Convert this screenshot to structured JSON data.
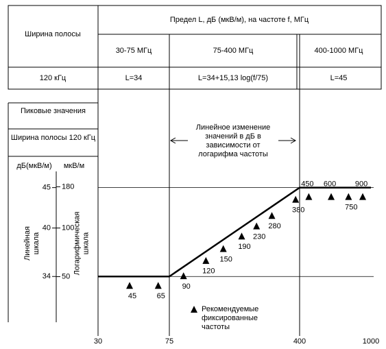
{
  "table": {
    "corner": "Ширина полосы",
    "header": "Предел L, дБ (мкВ/м), на частоте f, МГц",
    "columns": [
      "30-75 МГц",
      "75-400 МГц",
      "400-1000 МГц"
    ],
    "rows": [
      [
        "120 кГц",
        "L=34",
        "L=34+15,13 log(f/75)",
        "L=45"
      ]
    ]
  },
  "chart_data": {
    "type": "line",
    "detector": "Пиковые значения",
    "bandwidth": "Ширина полосы 120 кГц",
    "ylabel": "дБ(мкВ/м)",
    "y2label": "мкВ/м",
    "ylabel_note": "Линейная шкала",
    "y2label_note": "Логарифмическая шкала",
    "annotation": "Линейное изменение значений в дБ в зависимости от логарифма частоты",
    "xlog": true,
    "xlim": [
      30,
      1000
    ],
    "xticks": [
      30,
      75,
      400,
      1000
    ],
    "ylim": [
      27,
      55
    ],
    "yticks": [
      34,
      40,
      45
    ],
    "y2log": true,
    "y2lim": [
      22.4,
      562
    ],
    "y2ticks": [
      50,
      100,
      180
    ],
    "series": [
      {
        "x": [
          30,
          75,
          400,
          1000
        ],
        "values": [
          34,
          34,
          45,
          45
        ],
        "color": "#000000"
      }
    ],
    "markers": {
      "name": "Рекомендуемые фиксированные частоты",
      "color": "#000000",
      "x": [
        45,
        65,
        90,
        120,
        150,
        190,
        230,
        280,
        380,
        450,
        600,
        750,
        900
      ]
    }
  }
}
